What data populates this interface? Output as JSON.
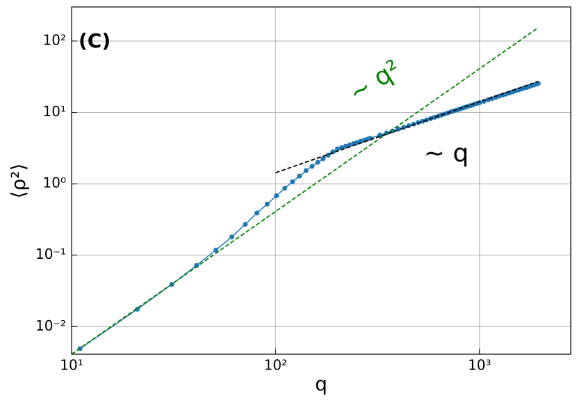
{
  "chart_data": {
    "type": "line",
    "xlabel": "q",
    "ylabel": "⟨ρ²⟩",
    "xscale": "log",
    "yscale": "log",
    "xlim": [
      10,
      2800
    ],
    "ylim": [
      0.0041,
      300
    ],
    "xticks": [
      {
        "value": 10,
        "label": "10¹"
      },
      {
        "value": 100,
        "label": "10²"
      },
      {
        "value": 1000,
        "label": "10³"
      }
    ],
    "yticks": [
      {
        "value": 0.01,
        "label": "10⁻²"
      },
      {
        "value": 0.1,
        "label": "10⁻¹"
      },
      {
        "value": 1,
        "label": "10⁰"
      },
      {
        "value": 10,
        "label": "10¹"
      },
      {
        "value": 100,
        "label": "10²"
      }
    ],
    "grid": true,
    "annotations": [
      {
        "text": "(C)",
        "color": "#000000"
      },
      {
        "text": "~ q²",
        "color": "#008000"
      },
      {
        "text": "~ q",
        "color": "#000000"
      }
    ],
    "series": [
      {
        "color": "#1f77b4",
        "marker": "o",
        "linestyle": "solid",
        "x": [
          11,
          21,
          31,
          41,
          51,
          61,
          71,
          81,
          91,
          101,
          111,
          121,
          131,
          141,
          151,
          161,
          171,
          181,
          191,
          201,
          211,
          221,
          231,
          241,
          251,
          261,
          271,
          281,
          291,
          325,
          350,
          375,
          400,
          425,
          450,
          475,
          500,
          525,
          550,
          575,
          600,
          625,
          650,
          675,
          700,
          725,
          750,
          775,
          800,
          825,
          850,
          875,
          900,
          925,
          950,
          975,
          1000,
          1050,
          1100,
          1150,
          1200,
          1250,
          1300,
          1350,
          1400,
          1450,
          1500,
          1550,
          1600,
          1650,
          1700,
          1750,
          1800,
          1850,
          1900,
          1941
        ],
        "values": [
          0.0049,
          0.0175,
          0.039,
          0.072,
          0.118,
          0.18,
          0.27,
          0.39,
          0.52,
          0.68,
          0.87,
          1.07,
          1.28,
          1.53,
          1.75,
          2.0,
          2.24,
          2.51,
          2.8,
          3.08,
          3.22,
          3.36,
          3.51,
          3.65,
          3.79,
          3.93,
          4.07,
          4.21,
          4.35,
          4.82,
          5.16,
          5.5,
          5.84,
          6.18,
          6.52,
          6.86,
          7.19,
          7.52,
          7.85,
          8.19,
          8.52,
          8.85,
          9.17,
          9.5,
          9.83,
          10.2,
          10.5,
          10.8,
          11.1,
          11.5,
          11.8,
          12.1,
          12.4,
          12.7,
          13.1,
          13.4,
          13.7,
          14.3,
          15.0,
          15.6,
          16.2,
          16.9,
          17.5,
          18.1,
          18.7,
          19.4,
          20.0,
          20.6,
          21.2,
          21.8,
          22.4,
          23.0,
          23.7,
          24.3,
          24.9,
          25.4
        ]
      },
      {
        "color": "#008000",
        "linestyle": "dashed",
        "x": [
          10,
          1941
        ],
        "values": [
          0.0041,
          154
        ]
      },
      {
        "color": "#000000",
        "linestyle": "dashed",
        "x": [
          100,
          1941
        ],
        "values": [
          1.43,
          27.2
        ]
      }
    ]
  }
}
